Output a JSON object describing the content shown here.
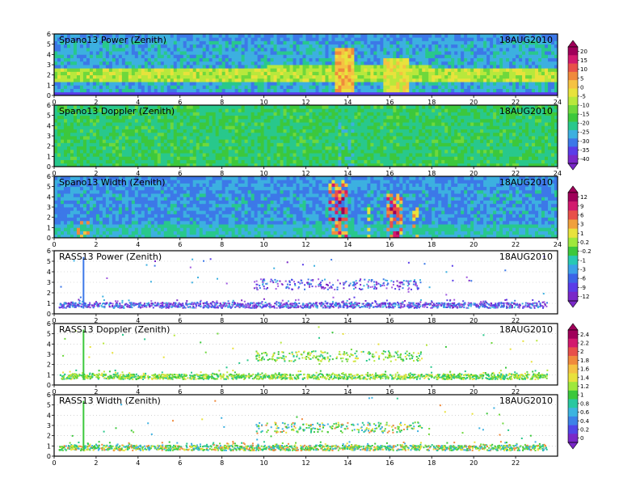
{
  "date": "18AUG2010",
  "colors": {
    "power_scale": [
      "#a0005a",
      "#d21a6e",
      "#e8504a",
      "#f08a3c",
      "#f5c242",
      "#e8e23c",
      "#b8e83c",
      "#6ed83c",
      "#3cc83c",
      "#28c88c",
      "#3cb0e0",
      "#3c78e8",
      "#5a3ce8",
      "#7a28c8"
    ],
    "width_scale": [
      "#a0005a",
      "#d21a6e",
      "#e8504a",
      "#f0a03c",
      "#e8e23c",
      "#9ee83c",
      "#3cc83c",
      "#28c8b4",
      "#3ca0e8",
      "#3c64e8",
      "#5a3ce8",
      "#7a28c8"
    ],
    "rass_scale": [
      "#a0005a",
      "#d21a6e",
      "#e8504a",
      "#f08a3c",
      "#f5c242",
      "#e8e23c",
      "#9ee83c",
      "#3cc83c",
      "#28c8a0",
      "#3cb4e0",
      "#3c82e8",
      "#5046e8",
      "#7a28c8"
    ]
  },
  "colorbars": [
    {
      "labels": [
        "20",
        "15",
        "10",
        "5",
        "0",
        "-5",
        "-10",
        "-15",
        "-20",
        "-25",
        "-30",
        "-35",
        "-40"
      ]
    },
    {
      "labels": [
        "12",
        "9",
        "6",
        "3",
        "1",
        "0.2",
        "-0.2",
        "-1",
        "-3",
        "-6",
        "-9",
        "-12"
      ]
    },
    {
      "labels": [
        "2.4",
        "2.2",
        "2",
        "1.8",
        "1.6",
        "1.4",
        "1.2",
        "1",
        "0.8",
        "0.6",
        "0.4",
        "0.2",
        "0"
      ]
    }
  ],
  "chart_data": [
    {
      "type": "heatmap",
      "title": "Spano13 Power (Zenith)",
      "date": "18AUG2010",
      "xlim": [
        0,
        24
      ],
      "ylim": [
        0,
        6
      ],
      "xticks": [
        "0",
        "2",
        "4",
        "6",
        "8",
        "10",
        "12",
        "14",
        "16",
        "18",
        "20",
        "22",
        "24"
      ],
      "yticks": [
        "0",
        "1",
        "2",
        "3",
        "4",
        "5",
        "6"
      ],
      "description_values": {
        "background_level": -20,
        "layer_height_km": [
          1.5,
          2.5
        ],
        "layer_level": 0,
        "peaks": [
          [
            13.8,
            4.5
          ],
          [
            15.8,
            3.5
          ],
          [
            16.5,
            3.0
          ]
        ]
      }
    },
    {
      "type": "heatmap",
      "title": "Spano13 Doppler (Zenith)",
      "date": "18AUG2010",
      "xlim": [
        0,
        24
      ],
      "ylim": [
        0,
        6
      ],
      "xticks": [
        "0",
        "2",
        "4",
        "6",
        "8",
        "10",
        "12",
        "14",
        "16",
        "18",
        "20",
        "22",
        "24"
      ],
      "yticks": [
        "0",
        "1",
        "2",
        "3",
        "4",
        "5",
        "6"
      ],
      "description_values": {
        "background_level": -0.2
      }
    },
    {
      "type": "heatmap",
      "title": "Spano13 Width (Zenith)",
      "date": "18AUG2010",
      "xlim": [
        0,
        24
      ],
      "ylim": [
        0,
        6
      ],
      "xticks": [
        "0",
        "2",
        "4",
        "6",
        "8",
        "10",
        "12",
        "14",
        "16",
        "18",
        "20",
        "22",
        "24"
      ],
      "yticks": [
        "0",
        "1",
        "2",
        "3",
        "4",
        "5",
        "6"
      ],
      "description_values": {
        "background_level": -3,
        "convective_cells_hours": [
          [
            13.0,
            14.0
          ],
          [
            15.8,
            16.5
          ],
          [
            17.0,
            17.2
          ]
        ]
      }
    },
    {
      "type": "scatter",
      "title": "RASS13 Power (Zenith)",
      "date": "18AUG2010",
      "xlim": [
        0,
        24
      ],
      "ylim": [
        0,
        6
      ],
      "xticks": [
        "0",
        "2",
        "4",
        "6",
        "8",
        "10",
        "12",
        "14",
        "16",
        "18",
        "20",
        "22"
      ],
      "yticks": [
        "0",
        "1",
        "2",
        "3",
        "4",
        "5",
        "6"
      ],
      "description_values": {
        "surface_band_km": [
          0.5,
          1.1
        ],
        "upper_band_km": [
          2.3,
          3.3
        ],
        "upper_band_hours": [
          9.5,
          17.5
        ]
      }
    },
    {
      "type": "scatter",
      "title": "RASS13 Doppler (Zenith)",
      "date": "18AUG2010",
      "xlim": [
        0,
        24
      ],
      "ylim": [
        0,
        6
      ],
      "xticks": [
        "0",
        "2",
        "4",
        "6",
        "8",
        "10",
        "12",
        "14",
        "16",
        "18",
        "20",
        "22"
      ],
      "yticks": [
        "0",
        "1",
        "2",
        "3",
        "4",
        "5",
        "6"
      ],
      "description_values": {
        "surface_band_km": [
          0.5,
          1.1
        ],
        "upper_band_km": [
          2.3,
          3.3
        ],
        "upper_band_hours": [
          9.5,
          17.5
        ]
      }
    },
    {
      "type": "scatter",
      "title": "RASS13 Width (Zenith)",
      "date": "18AUG2010",
      "xlim": [
        0,
        24
      ],
      "ylim": [
        0,
        6
      ],
      "xticks": [
        "0",
        "2",
        "4",
        "6",
        "8",
        "10",
        "12",
        "14",
        "16",
        "18",
        "20",
        "22"
      ],
      "yticks": [
        "0",
        "1",
        "2",
        "3",
        "4",
        "5",
        "6"
      ],
      "description_values": {
        "surface_band_km": [
          0.5,
          1.1
        ],
        "upper_band_km": [
          2.3,
          3.3
        ],
        "upper_band_hours": [
          9.5,
          17.5
        ]
      }
    }
  ]
}
